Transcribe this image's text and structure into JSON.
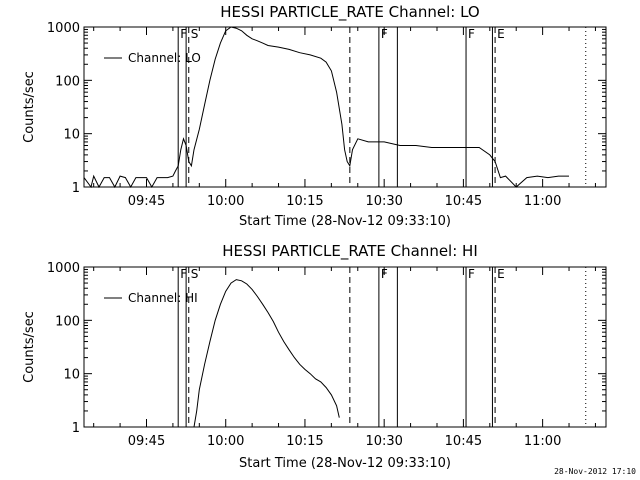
{
  "timestamp": "28-Nov-2012 17:10",
  "chart_data": [
    {
      "type": "line",
      "title": "HESSI PARTICLE_RATE Channel: LO",
      "xlabel": "Start Time (28-Nov-12 09:33:10)",
      "ylabel": "Counts/sec",
      "yscale": "log",
      "ylim": [
        1,
        1000
      ],
      "xlim": [
        "09:33:10",
        "11:12:00"
      ],
      "xticks": [
        "09:45",
        "10:00",
        "10:15",
        "10:30",
        "10:45",
        "11:00"
      ],
      "yticks": [
        "1",
        "10",
        "100",
        "1000"
      ],
      "legend": "Channel: LO",
      "legend_position": "top-left",
      "markers": [
        {
          "time": "09:51:00",
          "style": "solid",
          "label": "F"
        },
        {
          "time": "09:52:30",
          "style": "solid",
          "label": ""
        },
        {
          "time": "09:53:00",
          "style": "dashed",
          "label": "S"
        },
        {
          "time": "10:23:30",
          "style": "dashed",
          "label": ""
        },
        {
          "time": "10:29:00",
          "style": "solid",
          "label": "F"
        },
        {
          "time": "10:32:30",
          "style": "solid",
          "label": ""
        },
        {
          "time": "10:45:30",
          "style": "solid",
          "label": "F"
        },
        {
          "time": "10:50:30",
          "style": "solid",
          "label": ""
        },
        {
          "time": "10:51:00",
          "style": "dashed",
          "label": "E"
        },
        {
          "time": "11:08:10",
          "style": "dotted",
          "label": ""
        }
      ],
      "series": [
        {
          "name": "Channel: LO",
          "x": [
            "09:33:10",
            "09:34:30",
            "09:35:00",
            "09:36:00",
            "09:37:00",
            "09:38:00",
            "09:39:00",
            "09:40:00",
            "09:41:00",
            "09:42:00",
            "09:43:00",
            "09:44:00",
            "09:45:00",
            "09:46:00",
            "09:47:00",
            "09:48:00",
            "09:49:00",
            "09:50:00",
            "09:50:30",
            "09:51:00",
            "09:51:30",
            "09:52:00",
            "09:52:30",
            "09:53:00",
            "09:53:30",
            "09:54:00",
            "09:55:00",
            "09:56:00",
            "09:57:00",
            "09:58:00",
            "09:59:00",
            "10:00:00",
            "10:01:00",
            "10:02:00",
            "10:03:00",
            "10:04:00",
            "10:05:00",
            "10:06:00",
            "10:07:00",
            "10:08:00",
            "10:10:00",
            "10:12:00",
            "10:14:00",
            "10:16:00",
            "10:18:00",
            "10:19:00",
            "10:20:00",
            "10:21:00",
            "10:22:00",
            "10:22:30",
            "10:23:00",
            "10:23:30",
            "10:24:00",
            "10:25:00",
            "10:27:00",
            "10:30:00",
            "10:33:00",
            "10:36:00",
            "10:39:00",
            "10:42:00",
            "10:45:00",
            "10:48:00",
            "10:50:00",
            "10:51:00",
            "10:52:00",
            "10:53:00",
            "10:55:00",
            "10:57:00",
            "10:59:00",
            "11:01:00",
            "11:03:00",
            "11:05:00"
          ],
          "y": [
            1.5,
            1,
            1.6,
            1,
            1.5,
            1.5,
            1,
            1.6,
            1.5,
            1,
            1.5,
            1.5,
            1.5,
            1,
            1.5,
            1.5,
            1.5,
            1.6,
            2,
            2.5,
            5,
            8,
            6,
            3,
            2.5,
            5,
            12,
            35,
            100,
            250,
            500,
            850,
            1000,
            950,
            850,
            700,
            600,
            550,
            500,
            450,
            420,
            380,
            330,
            300,
            260,
            220,
            150,
            60,
            15,
            5,
            3,
            2.5,
            5,
            8,
            7,
            7,
            6,
            6,
            5.5,
            5.5,
            5.5,
            5.5,
            4,
            3,
            1.5,
            1.6,
            1,
            1.5,
            1.6,
            1.5,
            1.6,
            1.6
          ]
        }
      ]
    },
    {
      "type": "line",
      "title": "HESSI PARTICLE_RATE Channel: HI",
      "xlabel": "Start Time (28-Nov-12 09:33:10)",
      "ylabel": "Counts/sec",
      "yscale": "log",
      "ylim": [
        1,
        1000
      ],
      "xlim": [
        "09:33:10",
        "11:12:00"
      ],
      "xticks": [
        "09:45",
        "10:00",
        "10:15",
        "10:30",
        "10:45",
        "11:00"
      ],
      "yticks": [
        "1",
        "10",
        "100",
        "1000"
      ],
      "legend": "Channel: HI",
      "legend_position": "top-left",
      "markers": [
        {
          "time": "09:51:00",
          "style": "solid",
          "label": "F"
        },
        {
          "time": "09:52:30",
          "style": "solid",
          "label": ""
        },
        {
          "time": "09:53:00",
          "style": "dashed",
          "label": "S"
        },
        {
          "time": "10:23:30",
          "style": "dashed",
          "label": ""
        },
        {
          "time": "10:29:00",
          "style": "solid",
          "label": "F"
        },
        {
          "time": "10:32:30",
          "style": "solid",
          "label": ""
        },
        {
          "time": "10:45:30",
          "style": "solid",
          "label": "F"
        },
        {
          "time": "10:50:30",
          "style": "solid",
          "label": ""
        },
        {
          "time": "10:51:00",
          "style": "dashed",
          "label": "E"
        },
        {
          "time": "11:08:10",
          "style": "dotted",
          "label": ""
        }
      ],
      "series": [
        {
          "name": "Channel: HI",
          "x": [
            "09:54:00",
            "09:54:30",
            "09:55:00",
            "09:56:00",
            "09:57:00",
            "09:58:00",
            "09:59:00",
            "10:00:00",
            "10:01:00",
            "10:02:00",
            "10:03:00",
            "10:04:00",
            "10:05:00",
            "10:06:00",
            "10:07:00",
            "10:08:00",
            "10:09:00",
            "10:10:00",
            "10:11:00",
            "10:12:00",
            "10:13:00",
            "10:14:00",
            "10:15:00",
            "10:16:00",
            "10:17:00",
            "10:18:00",
            "10:19:00",
            "10:20:00",
            "10:21:00",
            "10:21:30"
          ],
          "y": [
            1,
            2,
            5,
            15,
            40,
            100,
            200,
            350,
            500,
            580,
            550,
            480,
            380,
            280,
            200,
            140,
            95,
            60,
            40,
            28,
            20,
            15,
            12,
            10,
            8,
            7,
            5.5,
            4,
            2.5,
            1.5
          ]
        }
      ]
    }
  ]
}
